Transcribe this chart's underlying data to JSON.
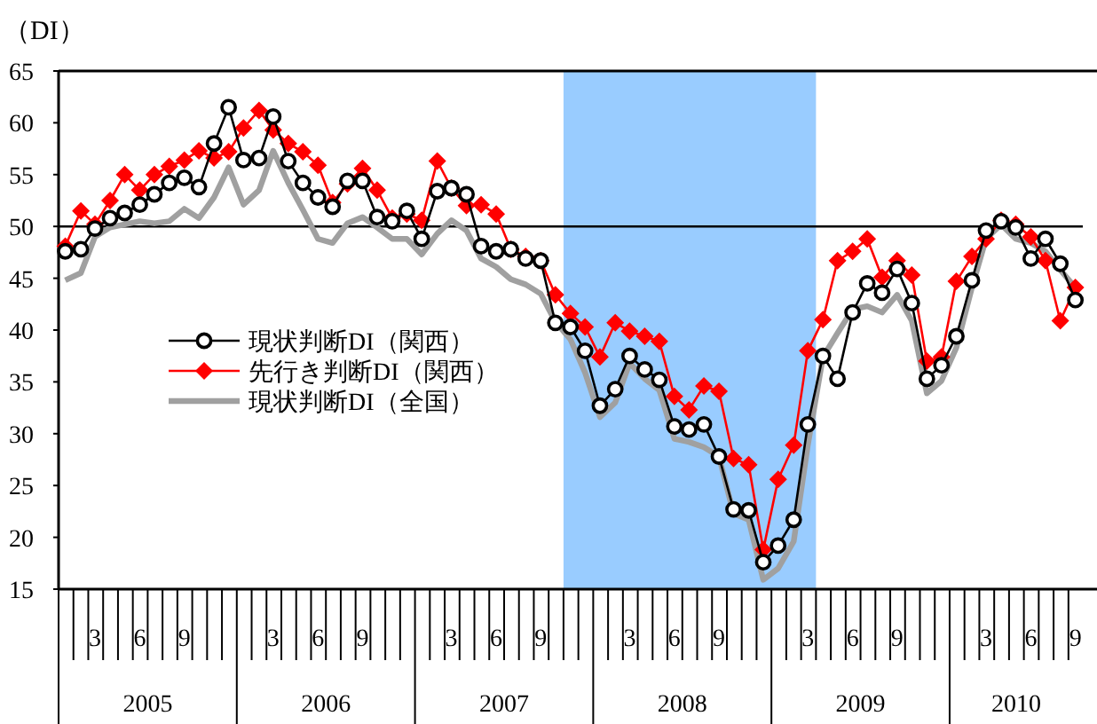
{
  "chart_data": {
    "type": "line",
    "ylabel": "（DI）",
    "x": [
      "2005-01-15",
      "2005-02-15",
      "2005-03-15",
      "2005-04-15",
      "2005-05-15",
      "2005-06-15",
      "2005-07-15",
      "2005-08-15",
      "2005-09-15",
      "2005-10-15",
      "2005-11-15",
      "2005-12-15",
      "2006-01-15",
      "2006-02-15",
      "2006-03-15",
      "2006-04-15",
      "2006-05-15",
      "2006-06-15",
      "2006-07-15",
      "2006-08-15",
      "2006-09-15",
      "2006-10-15",
      "2006-11-15",
      "2006-12-15",
      "2007-01-15",
      "2007-02-15",
      "2007-03-15",
      "2007-04-15",
      "2007-05-15",
      "2007-06-15",
      "2007-07-15",
      "2007-08-15",
      "2007-09-15",
      "2007-10-15",
      "2007-11-15",
      "2007-12-15",
      "2008-01-15",
      "2008-02-15",
      "2008-03-15",
      "2008-04-15",
      "2008-05-15",
      "2008-06-15",
      "2008-07-15",
      "2008-08-15",
      "2008-09-15",
      "2008-10-15",
      "2008-11-15",
      "2008-12-15",
      "2009-01-15",
      "2009-02-15",
      "2009-03-15",
      "2009-04-15",
      "2009-05-15",
      "2009-06-15",
      "2009-07-15",
      "2009-08-15",
      "2009-09-15",
      "2009-10-15",
      "2009-11-15",
      "2009-12-15",
      "2010-01-15",
      "2010-02-15",
      "2010-03-15",
      "2010-04-15",
      "2010-05-15",
      "2010-06-15",
      "2010-07-15",
      "2010-08-15",
      "2010-09-15"
    ],
    "xlim": [
      "2005-01-01",
      "2010-09-30"
    ],
    "xticks": [
      {
        "value": "2005-03-15",
        "label": "3"
      },
      {
        "value": "2005-06-15",
        "label": "6"
      },
      {
        "value": "2005-09-15",
        "label": "9"
      },
      {
        "value": "2006-03-15",
        "label": "3"
      },
      {
        "value": "2006-06-15",
        "label": "6"
      },
      {
        "value": "2006-09-15",
        "label": "9"
      },
      {
        "value": "2007-03-15",
        "label": "3"
      },
      {
        "value": "2007-06-15",
        "label": "6"
      },
      {
        "value": "2007-09-15",
        "label": "9"
      },
      {
        "value": "2008-03-15",
        "label": "3"
      },
      {
        "value": "2008-06-15",
        "label": "6"
      },
      {
        "value": "2008-09-15",
        "label": "9"
      },
      {
        "value": "2009-03-15",
        "label": "3"
      },
      {
        "value": "2009-06-15",
        "label": "6"
      },
      {
        "value": "2009-09-15",
        "label": "9"
      },
      {
        "value": "2010-03-15",
        "label": "3"
      },
      {
        "value": "2010-06-15",
        "label": "6"
      },
      {
        "value": "2010-09-15",
        "label": "9"
      }
    ],
    "ylim": [
      15,
      65
    ],
    "yticks": [
      15,
      20,
      25,
      30,
      35,
      40,
      45,
      50,
      55,
      60,
      65
    ],
    "grid": false,
    "legend": "left",
    "ref_lines": [
      {
        "axis": "y",
        "value": 50,
        "color": "#000000"
      }
    ],
    "bands": [
      {
        "axis": "x",
        "from": "2007-11-01",
        "to": "2009-04-01",
        "color": "#99ccff"
      }
    ],
    "annotations": [
      "2005",
      "2006",
      "2007",
      "2008",
      "2009",
      "2010"
    ],
    "series": [
      {
        "name": "現状判断DI（全国）",
        "color": "#a0a0a0",
        "marker": "none",
        "values": [
          44.8,
          45.5,
          49.0,
          49.9,
          50.2,
          50.5,
          50.3,
          50.5,
          51.7,
          50.8,
          52.8,
          55.7,
          52.1,
          53.5,
          57.3,
          54.2,
          51.6,
          48.8,
          48.4,
          50.3,
          50.9,
          49.9,
          48.8,
          48.8,
          47.3,
          49.3,
          50.6,
          49.6,
          46.9,
          46.1,
          44.9,
          44.4,
          43.5,
          40.8,
          39.1,
          35.9,
          31.6,
          33.0,
          36.8,
          35.3,
          34.2,
          29.5,
          29.2,
          28.7,
          27.8,
          22.3,
          21.7,
          15.9,
          17.0,
          19.6,
          28.9,
          37.4,
          39.7,
          42.0,
          42.3,
          41.7,
          43.4,
          40.9,
          33.9,
          35.1,
          38.3,
          44.1,
          48.8,
          50.2,
          48.8,
          48.4,
          47.6,
          45.8,
          44.1
        ]
      },
      {
        "name": "先行き判断DI（関西）",
        "color": "#ff0000",
        "marker": "diamond",
        "values": [
          48.1,
          51.5,
          50.2,
          52.5,
          55.0,
          53.5,
          55.0,
          55.8,
          56.4,
          57.3,
          56.6,
          57.2,
          59.5,
          61.2,
          59.3,
          58.0,
          57.2,
          55.9,
          52.3,
          54.1,
          55.6,
          53.5,
          50.8,
          51.2,
          50.6,
          56.3,
          53.7,
          52.0,
          52.1,
          51.2,
          47.8,
          47.1,
          46.7,
          43.4,
          41.6,
          40.3,
          37.4,
          40.7,
          39.9,
          39.4,
          38.9,
          33.6,
          32.3,
          34.6,
          34.1,
          27.6,
          27.0,
          18.8,
          25.6,
          28.9,
          38.0,
          41.0,
          46.7,
          47.6,
          48.8,
          45.1,
          46.7,
          45.3,
          37.0,
          37.4,
          44.7,
          47.1,
          48.8,
          50.6,
          50.2,
          49.0,
          46.7,
          40.9,
          44.1
        ]
      },
      {
        "name": "現状判断DI（関西）",
        "color": "#000000",
        "marker": "circle",
        "values": [
          47.6,
          47.8,
          49.8,
          50.8,
          51.3,
          52.1,
          53.1,
          54.2,
          54.7,
          53.8,
          58.0,
          61.5,
          56.4,
          56.6,
          60.6,
          56.3,
          54.2,
          52.8,
          51.9,
          54.4,
          54.4,
          50.9,
          50.5,
          51.5,
          48.8,
          53.4,
          53.7,
          53.1,
          48.1,
          47.6,
          47.8,
          46.9,
          46.7,
          40.7,
          40.3,
          38.0,
          32.7,
          34.3,
          37.5,
          36.2,
          35.2,
          30.7,
          30.4,
          30.9,
          27.8,
          22.7,
          22.6,
          17.6,
          19.2,
          21.7,
          30.9,
          37.5,
          35.3,
          41.7,
          44.5,
          43.6,
          45.9,
          42.6,
          35.3,
          36.6,
          39.4,
          44.8,
          49.6,
          50.5,
          49.9,
          46.9,
          48.8,
          46.4,
          42.9
        ]
      }
    ]
  }
}
